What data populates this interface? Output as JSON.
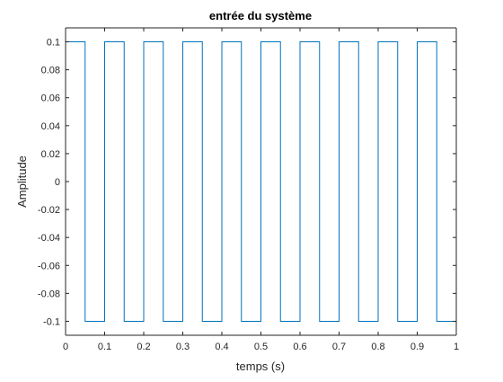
{
  "chart_data": {
    "type": "line",
    "title": "entrée du système",
    "xlabel": "temps (s)",
    "ylabel": "Amplitude",
    "xlim": [
      0,
      1
    ],
    "ylim": [
      -0.11,
      0.11
    ],
    "grid": false,
    "xticks": [
      "0",
      "0.1",
      "0.2",
      "0.3",
      "0.4",
      "0.5",
      "0.6",
      "0.7",
      "0.8",
      "0.9",
      "1"
    ],
    "xtick_values": [
      0,
      0.1,
      0.2,
      0.3,
      0.4,
      0.5,
      0.6,
      0.7,
      0.8,
      0.9,
      1
    ],
    "yticks": [
      "0.1",
      "0.08",
      "0.06",
      "0.04",
      "0.02",
      "0",
      "-0.02",
      "-0.04",
      "-0.06",
      "-0.08",
      "-0.1"
    ],
    "ytick_values": [
      0.1,
      0.08,
      0.06,
      0.04,
      0.02,
      0,
      -0.02,
      -0.04,
      -0.06,
      -0.08,
      -0.1
    ],
    "series_color": "#0072BD",
    "series": [
      {
        "x": [
          0,
          0.05,
          0.05,
          0.1,
          0.1,
          0.15,
          0.15,
          0.2,
          0.2,
          0.25,
          0.25,
          0.3,
          0.3,
          0.35,
          0.35,
          0.4,
          0.4,
          0.45,
          0.45,
          0.5,
          0.5,
          0.55,
          0.55,
          0.6,
          0.6,
          0.65,
          0.65,
          0.7,
          0.7,
          0.75,
          0.75,
          0.8,
          0.8,
          0.85,
          0.85,
          0.9,
          0.9,
          0.95,
          0.95,
          1,
          1
        ],
        "y": [
          0.1,
          0.1,
          -0.1,
          -0.1,
          0.1,
          0.1,
          -0.1,
          -0.1,
          0.1,
          0.1,
          -0.1,
          -0.1,
          0.1,
          0.1,
          -0.1,
          -0.1,
          0.1,
          0.1,
          -0.1,
          -0.1,
          0.1,
          0.1,
          -0.1,
          -0.1,
          0.1,
          0.1,
          -0.1,
          -0.1,
          0.1,
          0.1,
          -0.1,
          -0.1,
          0.1,
          0.1,
          -0.1,
          -0.1,
          0.1,
          0.1,
          -0.1,
          -0.1,
          0.1
        ]
      }
    ]
  }
}
